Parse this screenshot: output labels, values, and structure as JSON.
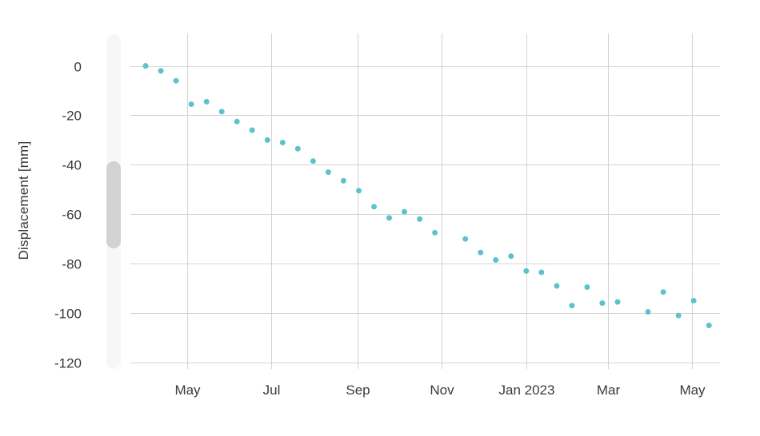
{
  "chart_data": {
    "type": "scatter",
    "title": "",
    "xlabel": "",
    "ylabel": "Displacement [mm]",
    "grid": true,
    "legend_position": "none",
    "x_domain": [
      "2022-03-21",
      "2023-05-21"
    ],
    "y_domain": [
      13.1,
      -120.35
    ],
    "x_ticks": [
      {
        "date": "2022-05-01",
        "label": "May"
      },
      {
        "date": "2022-07-01",
        "label": "Jul"
      },
      {
        "date": "2022-09-01",
        "label": "Sep"
      },
      {
        "date": "2022-11-01",
        "label": "Nov"
      },
      {
        "date": "2023-01-01",
        "label": "Jan 2023"
      },
      {
        "date": "2023-03-01",
        "label": "Mar"
      },
      {
        "date": "2023-05-01",
        "label": "May"
      }
    ],
    "y_ticks": [
      {
        "value": 0,
        "label": "0"
      },
      {
        "value": -20,
        "label": "-20"
      },
      {
        "value": -40,
        "label": "-40"
      },
      {
        "value": -60,
        "label": "-60"
      },
      {
        "value": -80,
        "label": "-80"
      },
      {
        "value": -100,
        "label": "-100"
      },
      {
        "value": -120,
        "label": "-120"
      }
    ],
    "series": [
      {
        "name": "Displacement",
        "marker": "circle",
        "marker_radius": 3.5,
        "color": "#5CC3CD",
        "points": [
          {
            "x": "2022-04-01",
            "y": 0
          },
          {
            "x": "2022-04-12",
            "y": -2
          },
          {
            "x": "2022-04-23",
            "y": -6
          },
          {
            "x": "2022-05-04",
            "y": -15.5
          },
          {
            "x": "2022-05-15",
            "y": -14.5
          },
          {
            "x": "2022-05-26",
            "y": -18.5
          },
          {
            "x": "2022-06-06",
            "y": -22.5
          },
          {
            "x": "2022-06-17",
            "y": -26
          },
          {
            "x": "2022-06-28",
            "y": -30
          },
          {
            "x": "2022-07-09",
            "y": -31
          },
          {
            "x": "2022-07-20",
            "y": -33.5
          },
          {
            "x": "2022-07-31",
            "y": -38.5
          },
          {
            "x": "2022-08-11",
            "y": -43
          },
          {
            "x": "2022-08-22",
            "y": -46.5
          },
          {
            "x": "2022-09-02",
            "y": -50.5
          },
          {
            "x": "2022-09-13",
            "y": -57
          },
          {
            "x": "2022-09-24",
            "y": -61.5
          },
          {
            "x": "2022-10-05",
            "y": -59
          },
          {
            "x": "2022-10-16",
            "y": -62
          },
          {
            "x": "2022-10-27",
            "y": -67.5
          },
          {
            "x": "2022-11-18",
            "y": -70
          },
          {
            "x": "2022-11-29",
            "y": -75.5
          },
          {
            "x": "2022-12-10",
            "y": -78.5
          },
          {
            "x": "2022-12-21",
            "y": -77
          },
          {
            "x": "2023-01-01",
            "y": -83
          },
          {
            "x": "2023-01-12",
            "y": -83.5
          },
          {
            "x": "2023-01-23",
            "y": -89
          },
          {
            "x": "2023-02-03",
            "y": -97
          },
          {
            "x": "2023-02-14",
            "y": -89.5
          },
          {
            "x": "2023-02-25",
            "y": -96
          },
          {
            "x": "2023-03-08",
            "y": -95.5
          },
          {
            "x": "2023-03-30",
            "y": -99.5
          },
          {
            "x": "2023-04-10",
            "y": -91.5
          },
          {
            "x": "2023-04-21",
            "y": -101
          },
          {
            "x": "2023-05-02",
            "y": -95
          },
          {
            "x": "2023-05-13",
            "y": -105
          }
        ]
      }
    ]
  },
  "colors": {
    "background": "#ffffff",
    "marker": "#5CC3CD",
    "gridline": "#D3D3D3",
    "tick_text": "#3A3A3A",
    "axis_title_text": "#3A3A3A",
    "scrollbar_track": "#F7F7F7",
    "scrollbar_thumb": "#D2D2D2"
  }
}
